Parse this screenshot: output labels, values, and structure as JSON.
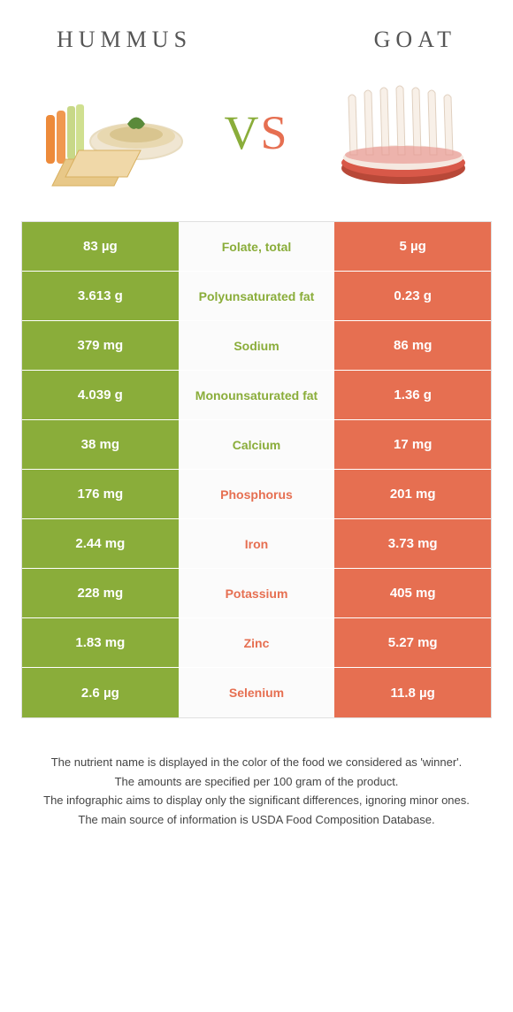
{
  "colors": {
    "left": "#8aad3a",
    "right": "#e66f51",
    "left_label": "#8aad3a",
    "right_label": "#e66f51",
    "row_divider": "#ffffff",
    "mid_bg": "#fbfbfb",
    "table_border": "#e0e0e0"
  },
  "header": {
    "left_title": "HUMMUS",
    "right_title": "GOAT",
    "vs": "VS"
  },
  "rows": [
    {
      "label": "Folate, total",
      "left": "83 µg",
      "right": "5 µg",
      "winner": "left"
    },
    {
      "label": "Polyunsaturated fat",
      "left": "3.613 g",
      "right": "0.23 g",
      "winner": "left"
    },
    {
      "label": "Sodium",
      "left": "379 mg",
      "right": "86 mg",
      "winner": "left"
    },
    {
      "label": "Monounsaturated fat",
      "left": "4.039 g",
      "right": "1.36 g",
      "winner": "left"
    },
    {
      "label": "Calcium",
      "left": "38 mg",
      "right": "17 mg",
      "winner": "left"
    },
    {
      "label": "Phosphorus",
      "left": "176 mg",
      "right": "201 mg",
      "winner": "right"
    },
    {
      "label": "Iron",
      "left": "2.44 mg",
      "right": "3.73 mg",
      "winner": "right"
    },
    {
      "label": "Potassium",
      "left": "228 mg",
      "right": "405 mg",
      "winner": "right"
    },
    {
      "label": "Zinc",
      "left": "1.83 mg",
      "right": "5.27 mg",
      "winner": "right"
    },
    {
      "label": "Selenium",
      "left": "2.6 µg",
      "right": "11.8 µg",
      "winner": "right"
    }
  ],
  "footnotes": [
    "The nutrient name is displayed in the color of the food we considered as 'winner'.",
    "The amounts are specified per 100 gram of the product.",
    "The infographic aims to display only the significant differences, ignoring minor ones.",
    "The main source of information is USDA Food Composition Database."
  ]
}
